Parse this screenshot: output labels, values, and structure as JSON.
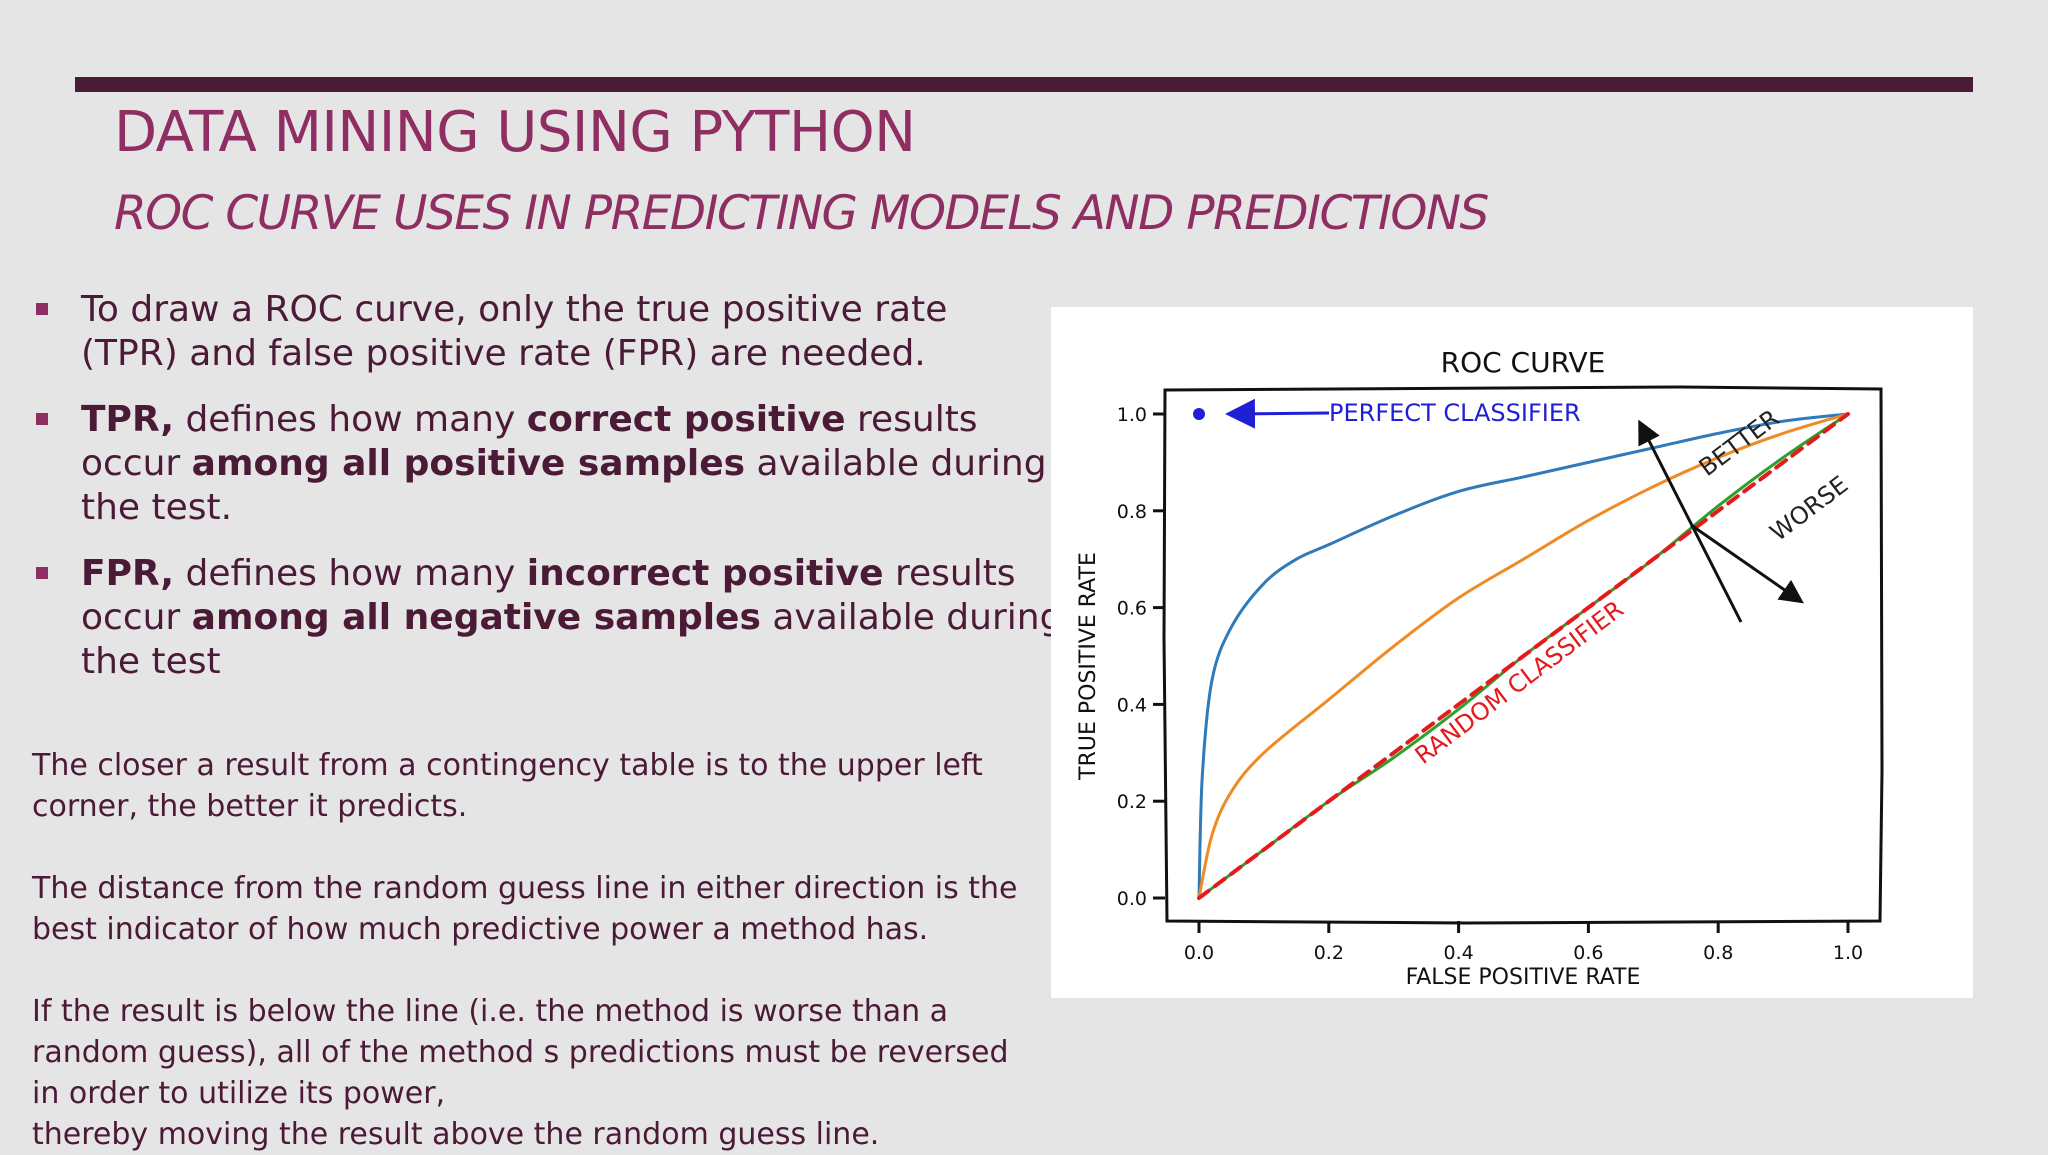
{
  "slide": {
    "title": "DATA MINING USING PYTHON",
    "subtitle": "ROC CURVE USES IN PREDICTING MODELS AND PREDICTIONS"
  },
  "bullets": [
    {
      "lines": [
        [
          {
            "t": "To draw a ROC curve, only the true positive rate",
            "b": false
          }
        ],
        [
          {
            "t": "(TPR) and false positive rate (FPR) are needed.",
            "b": false
          }
        ]
      ]
    },
    {
      "lines": [
        [
          {
            "t": "TPR,",
            "b": true
          },
          {
            "t": " defines how many ",
            "b": false
          },
          {
            "t": "correct positive",
            "b": true
          },
          {
            "t": " results",
            "b": false
          }
        ],
        [
          {
            "t": "occur ",
            "b": false
          },
          {
            "t": "among all positive samples",
            "b": true
          },
          {
            "t": " available during",
            "b": false
          }
        ],
        [
          {
            "t": "the test.",
            "b": false
          }
        ]
      ]
    },
    {
      "lines": [
        [
          {
            "t": "FPR,",
            "b": true
          },
          {
            "t": " defines how many ",
            "b": false
          },
          {
            "t": "incorrect positive",
            "b": true
          },
          {
            "t": " results",
            "b": false
          }
        ],
        [
          {
            "t": "occur ",
            "b": false
          },
          {
            "t": "among all negative samples",
            "b": true
          },
          {
            "t": " available during",
            "b": false
          }
        ],
        [
          {
            "t": "the test",
            "b": false
          }
        ]
      ]
    }
  ],
  "paragraphs": [
    [
      "The closer a result from a contingency table is to the upper left",
      "corner, the better it predicts."
    ],
    [
      "The distance from the random guess line in either direction is the",
      "best indicator of how much predictive power a method has."
    ],
    [
      "If the result is below the line (i.e. the method is worse than a",
      "random guess), all of the method s predictions must be reversed",
      "in order to utilize its power,",
      "thereby moving the result above the random guess line."
    ]
  ],
  "chart_data": {
    "type": "line",
    "title": "ROC CURVE",
    "xlabel": "FALSE POSITIVE RATE",
    "ylabel": "TRUE POSITIVE RATE",
    "xlim": [
      0,
      1
    ],
    "ylim": [
      0,
      1
    ],
    "xticks": [
      "0.0",
      "0.2",
      "0.4",
      "0.6",
      "0.8",
      "1.0"
    ],
    "yticks": [
      "0.0",
      "0.2",
      "0.4",
      "0.6",
      "0.8",
      "1.0"
    ],
    "grid": false,
    "series": [
      {
        "color": "#2f7ab9",
        "x": [
          0,
          0.005,
          0.02,
          0.05,
          0.1,
          0.15,
          0.2,
          0.3,
          0.4,
          0.5,
          0.6,
          0.7,
          0.8,
          0.9,
          1.0
        ],
        "y": [
          0,
          0.25,
          0.45,
          0.56,
          0.65,
          0.7,
          0.73,
          0.79,
          0.84,
          0.87,
          0.9,
          0.93,
          0.96,
          0.985,
          1.0
        ]
      },
      {
        "color": "#f08a24",
        "x": [
          0,
          0.02,
          0.05,
          0.1,
          0.2,
          0.3,
          0.4,
          0.5,
          0.6,
          0.7,
          0.8,
          0.9,
          1.0
        ],
        "y": [
          0,
          0.13,
          0.22,
          0.3,
          0.41,
          0.52,
          0.62,
          0.7,
          0.78,
          0.85,
          0.91,
          0.96,
          1.0
        ]
      },
      {
        "color": "#2ca02c",
        "x": [
          0,
          0.1,
          0.2,
          0.3,
          0.4,
          0.5,
          0.6,
          0.7,
          0.8,
          0.9,
          1.0
        ],
        "y": [
          0,
          0.1,
          0.2,
          0.29,
          0.39,
          0.5,
          0.6,
          0.7,
          0.81,
          0.91,
          1.0
        ]
      },
      {
        "name": "RANDOM CLASSIFIER",
        "color": "#e41a1c",
        "dashed": true,
        "x": [
          0,
          1
        ],
        "y": [
          0,
          1
        ]
      }
    ],
    "perfect_point": {
      "x": 0,
      "y": 1,
      "color": "#1f1fd6"
    },
    "annotations": [
      {
        "text": "PERFECT CLASSIFIER",
        "color": "#1f1fd6"
      },
      {
        "text": "RANDOM CLASSIFIER",
        "color": "#e41a1c"
      },
      {
        "text": "BETTER",
        "color": "#222222"
      },
      {
        "text": "WORSE",
        "color": "#222222"
      }
    ]
  }
}
